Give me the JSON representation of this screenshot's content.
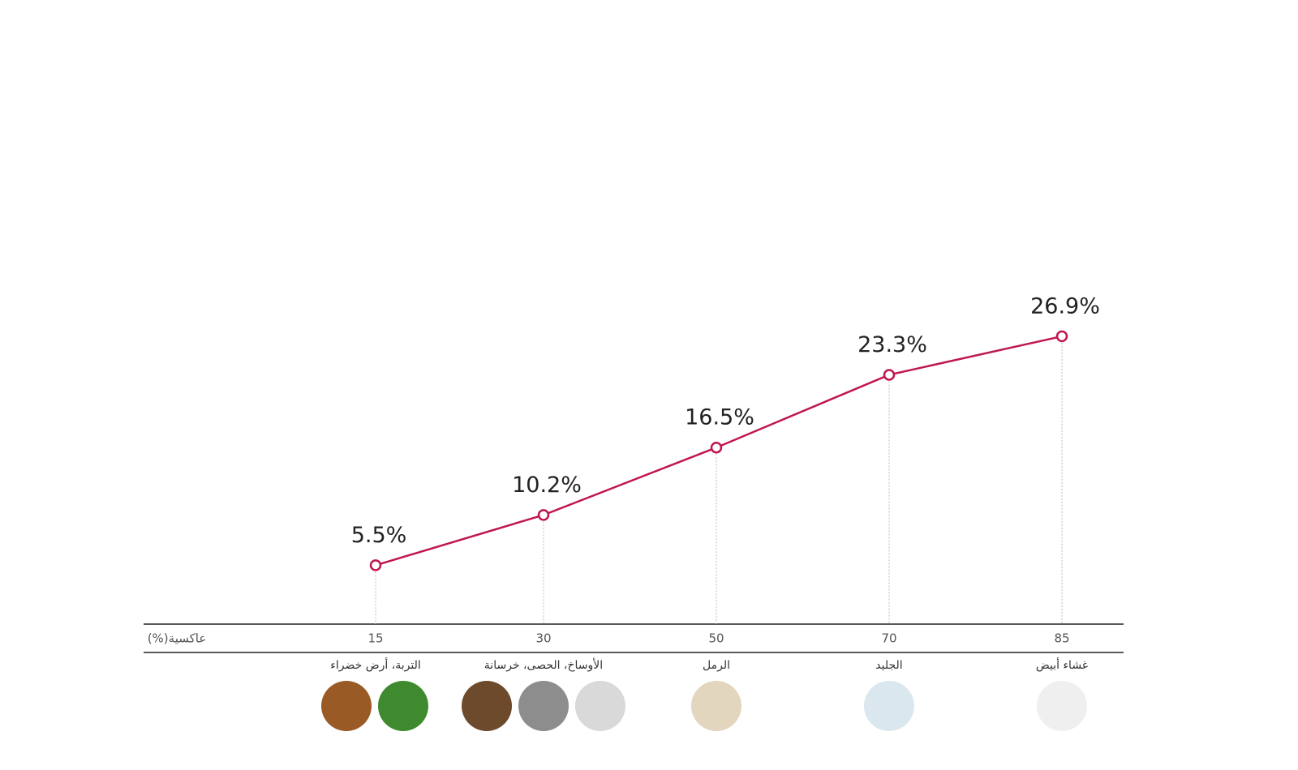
{
  "chart_data": {
    "type": "line",
    "x_label": "عاكسية(%)",
    "categories": [
      "15",
      "30",
      "50",
      "70",
      "85"
    ],
    "surface_labels": [
      "التربة، أرض خضراء",
      "الأوساخ، الحصى، خرسانة",
      "الرمل",
      "الجليد",
      "غشاء أبيض"
    ],
    "series": [
      {
        "name": null,
        "color": "#c0164f",
        "values": [
          5.5,
          10.2,
          16.5,
          23.3,
          26.9
        ],
        "value_labels": [
          "5.5%",
          "10.2%",
          "16.5%",
          "23.3%",
          "26.9%"
        ]
      }
    ],
    "ylim": [
      0,
      30
    ]
  }
}
